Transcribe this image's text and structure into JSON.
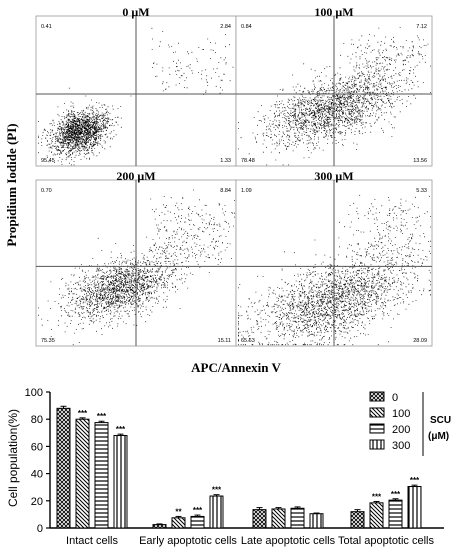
{
  "flow": {
    "ylabel": "Propidium Iodide (PI)",
    "xlabel": "APC/Annexin V",
    "panels": [
      {
        "title": "0 μM",
        "UL": "0.41",
        "UR": "2.84",
        "LL": "95.45",
        "LR": "1.33",
        "center": [
          0.22,
          0.77
        ],
        "spread": [
          0.07,
          0.07
        ],
        "n": 1900,
        "upper": 0.05
      },
      {
        "title": "100 μM",
        "UL": "0.84",
        "UR": "7.12",
        "LL": "78.48",
        "LR": "13.56",
        "center": [
          0.48,
          0.62
        ],
        "spread": [
          0.16,
          0.1
        ],
        "n": 2200,
        "upper": 0.12
      },
      {
        "title": "200 μM",
        "UL": "0.70",
        "UR": "8.84",
        "LL": "75.35",
        "LR": "15.11",
        "center": [
          0.42,
          0.65
        ],
        "spread": [
          0.13,
          0.08
        ],
        "n": 2100,
        "upper": 0.14
      },
      {
        "title": "300 μM",
        "UL": "1.09",
        "UR": "5.33",
        "LL": "65.63",
        "LR": "28.09",
        "center": [
          0.5,
          0.72
        ],
        "spread": [
          0.2,
          0.11
        ],
        "n": 2400,
        "upper": 0.1
      }
    ]
  },
  "chart_data": {
    "type": "bar",
    "ylabel": "Cell population(%)",
    "ylim": [
      0,
      100
    ],
    "yticks": [
      "0",
      "20",
      "40",
      "60",
      "80",
      "100"
    ],
    "categories": [
      "Intact cells",
      "Early apoptotic cells",
      "Late apoptotic cells",
      "Total apoptotic cells"
    ],
    "series": [
      {
        "name": "0",
        "values": [
          88,
          2.5,
          13.5,
          12
        ],
        "errors": [
          1.5,
          0.5,
          1.5,
          1.5
        ]
      },
      {
        "name": "100",
        "values": [
          80,
          7.5,
          14,
          18.5
        ],
        "errors": [
          1.0,
          1.0,
          1.0,
          1.0
        ]
      },
      {
        "name": "200",
        "values": [
          77.5,
          8.5,
          14.5,
          20.5
        ],
        "errors": [
          1.0,
          1.0,
          1.0,
          1.0
        ]
      },
      {
        "name": "300",
        "values": [
          68,
          23.5,
          10.5,
          30.5
        ],
        "errors": [
          1.0,
          1.0,
          0.5,
          1.0
        ]
      }
    ],
    "significance": [
      [
        "",
        "",
        "",
        ""
      ],
      [
        "***",
        "**",
        "",
        "***"
      ],
      [
        "***",
        "***",
        "",
        "***"
      ],
      [
        "***",
        "***",
        "",
        "***"
      ]
    ],
    "legend": {
      "position": "top-right",
      "group_label_1": "SCU",
      "group_label_2": "(μM)"
    }
  }
}
